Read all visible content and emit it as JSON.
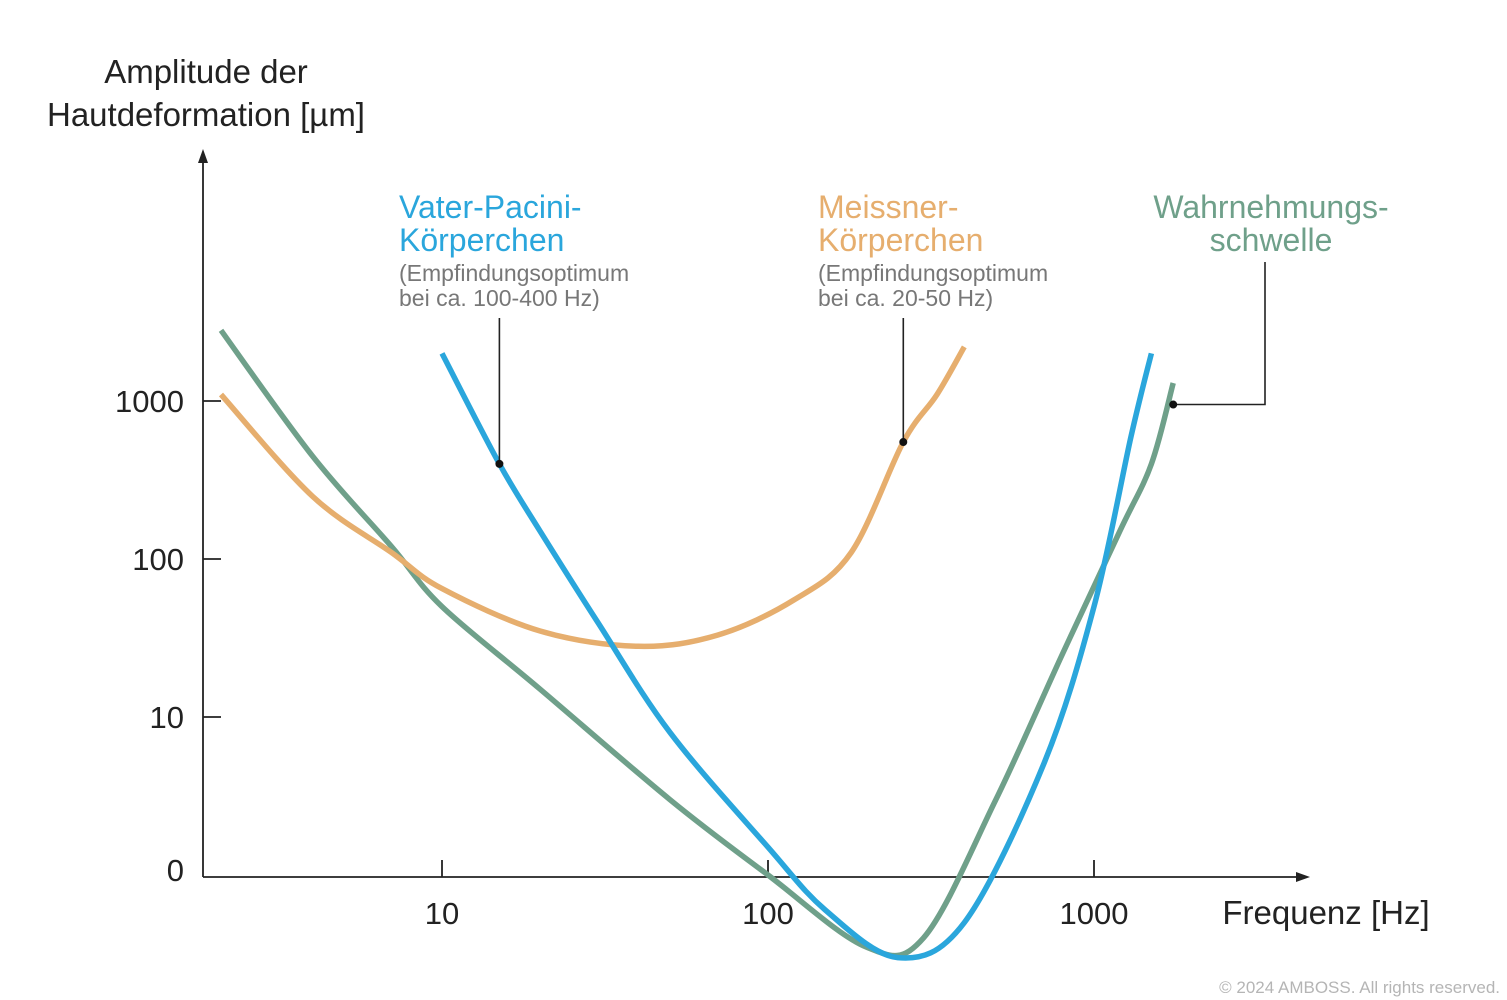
{
  "chart_data": {
    "type": "line",
    "ylabel_lines": [
      "Amplitude der",
      "Hautdeformation [µm]"
    ],
    "xlabel": "Frequenz [Hz]",
    "x_scale": "log",
    "y_scale": "log",
    "x_ticks": [
      {
        "value": 10,
        "label": "10"
      },
      {
        "value": 100,
        "label": "100"
      },
      {
        "value": 1000,
        "label": "1000"
      }
    ],
    "y_ticks": [
      {
        "value": 0,
        "label": "0"
      },
      {
        "value": 10,
        "label": "10"
      },
      {
        "value": 100,
        "label": "100"
      },
      {
        "value": 1000,
        "label": "1000"
      }
    ],
    "grid": false,
    "series": [
      {
        "id": "pacini",
        "name_lines": [
          "Vater-Pacini-",
          "Körperchen"
        ],
        "note_lines": [
          "(Empfindungsoptimum",
          "bei ca. 100-400 Hz)"
        ],
        "color": "#2aa6dc",
        "marker": {
          "x": 15,
          "y": 400
        },
        "points": [
          [
            10,
            2000
          ],
          [
            15,
            400
          ],
          [
            20,
            150
          ],
          [
            30,
            40
          ],
          [
            50,
            8
          ],
          [
            100,
            1.5
          ],
          [
            150,
            0.6
          ],
          [
            250,
            0.3
          ],
          [
            400,
            0.5
          ],
          [
            700,
            5
          ],
          [
            1000,
            50
          ],
          [
            1300,
            600
          ],
          [
            1500,
            2000
          ]
        ]
      },
      {
        "id": "meissner",
        "name_lines": [
          "Meissner-",
          "Körperchen"
        ],
        "note_lines": [
          "(Empfindungsoptimum",
          "bei ca. 20-50 Hz)"
        ],
        "color": "#e6ae6e",
        "marker": {
          "x": 260,
          "y": 550
        },
        "points": [
          [
            2.1,
            1100
          ],
          [
            4,
            250
          ],
          [
            7,
            110
          ],
          [
            10,
            65
          ],
          [
            20,
            35
          ],
          [
            40,
            28
          ],
          [
            70,
            33
          ],
          [
            120,
            55
          ],
          [
            180,
            110
          ],
          [
            260,
            550
          ],
          [
            330,
            1100
          ],
          [
            400,
            2200
          ]
        ]
      },
      {
        "id": "threshold",
        "name_lines": [
          "Wahrnehmungs-",
          "schwelle"
        ],
        "color": "#6fa08a",
        "marker": {
          "x": 1750,
          "y": 950
        },
        "points": [
          [
            2.1,
            2800
          ],
          [
            4,
            450
          ],
          [
            7,
            120
          ],
          [
            10,
            50
          ],
          [
            20,
            15
          ],
          [
            50,
            3
          ],
          [
            100,
            1
          ],
          [
            200,
            0.35
          ],
          [
            300,
            0.4
          ],
          [
            500,
            3
          ],
          [
            800,
            25
          ],
          [
            1200,
            150
          ],
          [
            1500,
            400
          ],
          [
            1750,
            1300
          ]
        ]
      }
    ]
  },
  "copyright": "© 2024 AMBOSS. All rights reserved."
}
